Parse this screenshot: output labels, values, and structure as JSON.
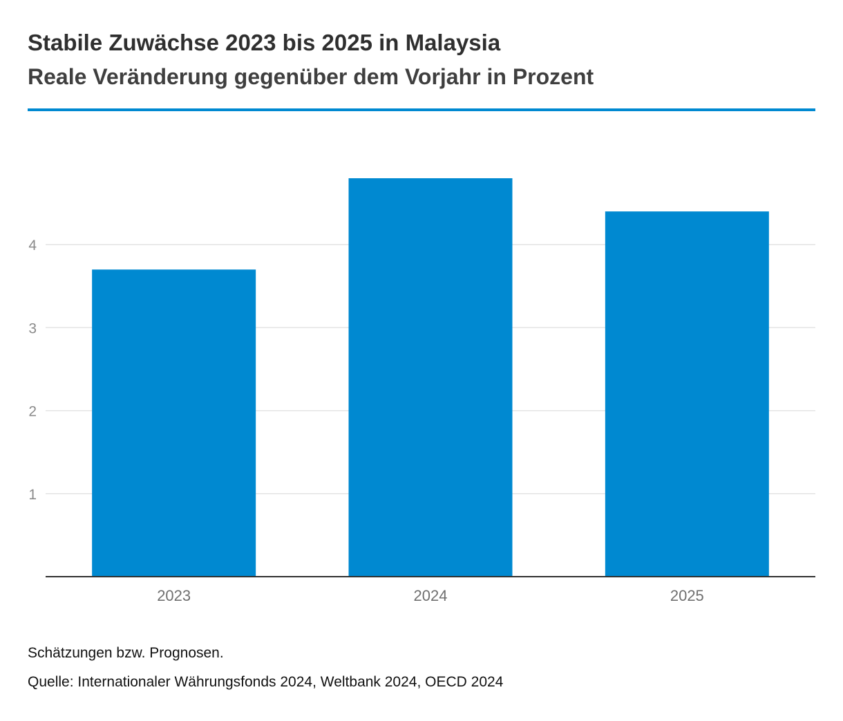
{
  "header": {
    "title": "Stabile Zuwächse 2023 bis 2025 in Malaysia",
    "subtitle": "Reale Veränderung gegenüber dem Vorjahr in Prozent"
  },
  "footer": {
    "note": "Schätzungen bzw. Prognosen.",
    "source": "Quelle: Internationaler Währungsfonds 2024, Weltbank 2024, OECD 2024"
  },
  "chart_data": {
    "type": "bar",
    "categories": [
      "2023",
      "2024",
      "2025"
    ],
    "values": [
      3.7,
      4.8,
      4.4
    ],
    "ylim": [
      0,
      5.2
    ],
    "yticks": [
      1,
      2,
      3,
      4
    ],
    "grid": true,
    "legend": "none",
    "bar_color": "#0089d1",
    "grid_color": "#e3e3e3",
    "axis_color": "#2f2f2f",
    "tick_label_color": "#8a8a8a"
  }
}
